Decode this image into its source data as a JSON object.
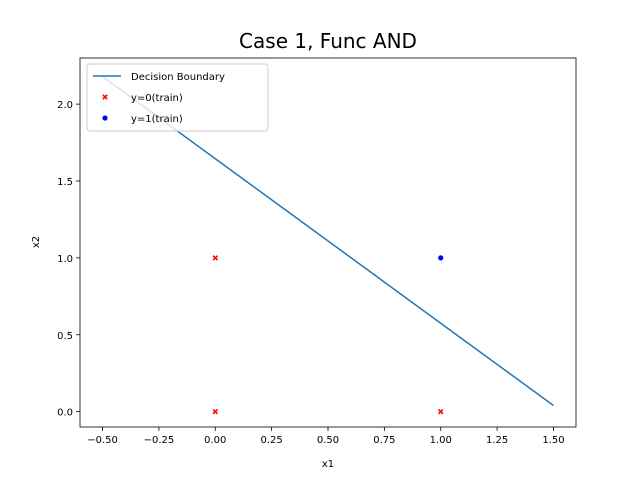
{
  "chart_data": {
    "type": "scatter",
    "title": "Case 1, Func AND",
    "xlabel": "x1",
    "ylabel": "x2",
    "xlim": [
      -0.6,
      1.6
    ],
    "ylim": [
      -0.1,
      2.3
    ],
    "xticks": [
      -0.5,
      -0.25,
      0.0,
      0.25,
      0.5,
      0.75,
      1.0,
      1.25,
      1.5
    ],
    "xtick_labels": [
      "−0.50",
      "−0.25",
      "0.00",
      "0.25",
      "0.50",
      "0.75",
      "1.00",
      "1.25",
      "1.50"
    ],
    "yticks": [
      0.0,
      0.5,
      1.0,
      1.5,
      2.0
    ],
    "ytick_labels": [
      "0.0",
      "0.5",
      "1.0",
      "1.5",
      "2.0"
    ],
    "grid": false,
    "legend": {
      "placement": "top-left",
      "entries": [
        "Decision Boundary",
        "y=0(train)",
        "y=1(train)"
      ]
    },
    "series": [
      {
        "name": "Decision Boundary",
        "kind": "line",
        "color": "#1f77b4",
        "x": [
          -0.5,
          1.5
        ],
        "y": [
          2.18,
          0.04
        ]
      },
      {
        "name": "y=0(train)",
        "kind": "scatter",
        "marker": "x",
        "color": "#ff0000",
        "x": [
          0,
          0,
          1
        ],
        "y": [
          0,
          1,
          0
        ]
      },
      {
        "name": "y=1(train)",
        "kind": "scatter",
        "marker": "o",
        "color": "#0000ff",
        "x": [
          1
        ],
        "y": [
          1
        ]
      }
    ]
  }
}
